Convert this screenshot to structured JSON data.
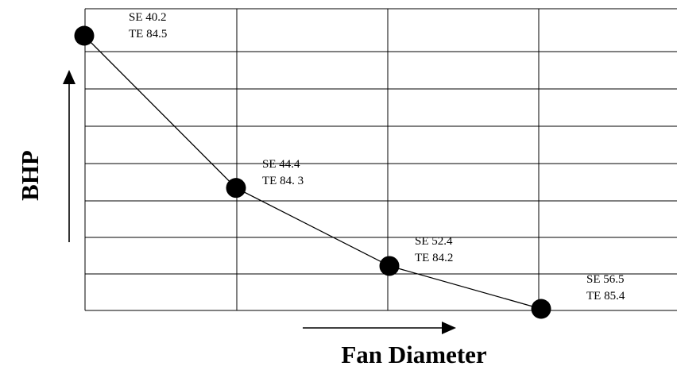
{
  "chart_data": {
    "type": "line",
    "xlabel": "Fan Diameter",
    "ylabel": "BHP",
    "grid": true,
    "legend": "none",
    "points": [
      {
        "label_lines": [
          "SE 40.2",
          "TE 84.5"
        ]
      },
      {
        "label_lines": [
          "SE 44.4",
          "TE 84. 3"
        ]
      },
      {
        "label_lines": [
          "SE 52.4",
          "TE 84.2"
        ]
      },
      {
        "label_lines": [
          "SE 56.5",
          "TE 85.4"
        ]
      }
    ],
    "x": [
      1,
      2,
      3,
      4
    ],
    "y": [
      7.0,
      3.1,
      1.1,
      0.0
    ],
    "ylim": [
      0,
      8
    ],
    "xlim": [
      1,
      4
    ],
    "colors": {
      "line": "#000000",
      "marker": "#000000",
      "grid": "#000000"
    }
  }
}
